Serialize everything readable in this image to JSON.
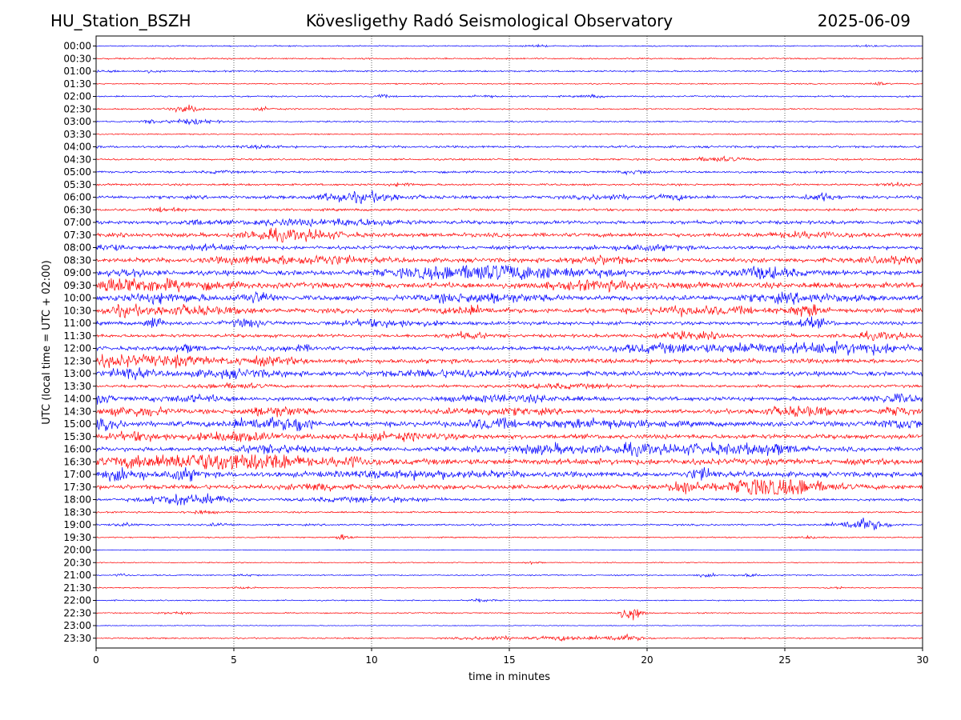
{
  "header": {
    "station": "HU_Station_BSZH",
    "observatory": "Kövesligethy Radó Seismological Observatory",
    "date": "2025-06-09"
  },
  "chart_data": {
    "type": "line",
    "title": "Kövesligethy Radó Seismological Observatory",
    "xlabel": "time in minutes",
    "ylabel": "UTC (local time = UTC + 02:00)",
    "xlim": [
      0,
      30
    ],
    "x_ticks": [
      "0",
      "5",
      "10",
      "15",
      "20",
      "25",
      "30"
    ],
    "x_gridlines": [
      5,
      10,
      15,
      20,
      25
    ],
    "grid": "vertical dotted",
    "series_colors": [
      "#0000ff",
      "#ff0000"
    ],
    "rows": [
      {
        "label": "00:00",
        "noise": 0.6,
        "events": [
          [
            16.0,
            0.8,
            0.3
          ],
          [
            28.0,
            0.5,
            0.3
          ]
        ]
      },
      {
        "label": "00:30",
        "noise": 0.7,
        "events": []
      },
      {
        "label": "01:00",
        "noise": 0.8,
        "events": [
          [
            0.3,
            0.8,
            0.4
          ],
          [
            1.9,
            1.0,
            0.3
          ]
        ]
      },
      {
        "label": "01:30",
        "noise": 0.6,
        "events": [
          [
            28.3,
            2.2,
            0.2
          ]
        ]
      },
      {
        "label": "02:00",
        "noise": 0.8,
        "events": [
          [
            10.3,
            1.4,
            0.2
          ],
          [
            14.1,
            1.0,
            0.3
          ],
          [
            18.0,
            1.2,
            0.3
          ]
        ]
      },
      {
        "label": "02:30",
        "noise": 0.7,
        "events": [
          [
            3.4,
            2.8,
            0.3
          ],
          [
            2.9,
            1.2,
            0.3
          ],
          [
            6.1,
            1.2,
            0.3
          ]
        ]
      },
      {
        "label": "03:00",
        "noise": 0.7,
        "events": [
          [
            3.5,
            2.5,
            0.6
          ],
          [
            2.0,
            1.3,
            0.3
          ],
          [
            29.2,
            1.0,
            0.2
          ]
        ]
      },
      {
        "label": "03:30",
        "noise": 0.6,
        "events": []
      },
      {
        "label": "04:00",
        "noise": 1.1,
        "events": [
          [
            6.0,
            1.0,
            0.5
          ]
        ]
      },
      {
        "label": "04:30",
        "noise": 0.9,
        "events": [
          [
            22.5,
            2.0,
            0.8
          ]
        ]
      },
      {
        "label": "05:00",
        "noise": 1.1,
        "events": [
          [
            19.6,
            1.6,
            0.4
          ],
          [
            4.5,
            1.0,
            0.3
          ]
        ]
      },
      {
        "label": "05:30",
        "noise": 1.0,
        "events": [
          [
            11.2,
            1.5,
            0.3
          ],
          [
            29.0,
            1.5,
            0.4
          ]
        ]
      },
      {
        "label": "06:00",
        "noise": 1.6,
        "events": [
          [
            10.0,
            3.5,
            0.9
          ],
          [
            8.8,
            2.5,
            0.6
          ],
          [
            26.3,
            3.0,
            0.4
          ],
          [
            18.5,
            2.0,
            0.6
          ],
          [
            21.0,
            2.0,
            0.4
          ]
        ]
      },
      {
        "label": "06:30",
        "noise": 1.2,
        "events": [
          [
            2.6,
            2.5,
            0.3
          ]
        ]
      },
      {
        "label": "07:00",
        "noise": 1.8,
        "events": [
          [
            9.2,
            2.8,
            1.2
          ],
          [
            6.5,
            2.0,
            0.8
          ],
          [
            3.6,
            1.8,
            0.5
          ]
        ]
      },
      {
        "label": "07:30",
        "noise": 2.0,
        "events": [
          [
            6.2,
            4.0,
            0.6
          ],
          [
            7.7,
            3.8,
            0.9
          ],
          [
            26.0,
            2.0,
            1.0
          ]
        ]
      },
      {
        "label": "08:00",
        "noise": 1.8,
        "events": [
          [
            0.3,
            3.0,
            0.5
          ],
          [
            4.0,
            2.0,
            1.0
          ],
          [
            20.0,
            2.0,
            1.0
          ]
        ]
      },
      {
        "label": "08:30",
        "noise": 2.2,
        "events": [
          [
            8.2,
            3.8,
            1.1
          ],
          [
            18.3,
            3.2,
            0.8
          ],
          [
            5.5,
            2.4,
            1.0
          ],
          [
            29.0,
            2.6,
            0.8
          ]
        ]
      },
      {
        "label": "09:00",
        "noise": 2.4,
        "events": [
          [
            12.5,
            4.0,
            1.5
          ],
          [
            14.5,
            5.0,
            1.2
          ],
          [
            24.2,
            5.0,
            0.8
          ],
          [
            1.2,
            3.0,
            0.5
          ],
          [
            17.0,
            3.0,
            1.5
          ]
        ]
      },
      {
        "label": "09:30",
        "noise": 2.8,
        "events": [
          [
            0.7,
            4.5,
            0.9
          ],
          [
            2.5,
            3.5,
            1.6
          ],
          [
            18.5,
            3.0,
            1.5
          ]
        ]
      },
      {
        "label": "10:00",
        "noise": 2.4,
        "events": [
          [
            5.8,
            5.0,
            0.4
          ],
          [
            2.5,
            3.5,
            1.0
          ],
          [
            14.0,
            3.5,
            1.5
          ],
          [
            25.5,
            3.0,
            1.5
          ]
        ]
      },
      {
        "label": "10:30",
        "noise": 2.3,
        "events": [
          [
            25.8,
            5.5,
            0.4
          ],
          [
            3.0,
            3.5,
            1.5
          ],
          [
            13.5,
            3.5,
            0.6
          ],
          [
            0.9,
            3.0,
            0.4
          ],
          [
            22.0,
            3.0,
            1.5
          ]
        ]
      },
      {
        "label": "11:00",
        "noise": 1.8,
        "events": [
          [
            2.1,
            6.5,
            0.2
          ],
          [
            25.9,
            4.0,
            0.5
          ],
          [
            5.5,
            3.0,
            0.5
          ],
          [
            10.5,
            2.5,
            1.2
          ]
        ]
      },
      {
        "label": "11:30",
        "noise": 1.6,
        "events": [
          [
            13.5,
            2.8,
            0.5
          ],
          [
            21.5,
            2.8,
            1.0
          ],
          [
            28.5,
            2.8,
            0.8
          ]
        ]
      },
      {
        "label": "12:00",
        "noise": 2.0,
        "events": [
          [
            27.5,
            5.0,
            1.5
          ],
          [
            24.0,
            3.5,
            1.2
          ],
          [
            20.5,
            3.5,
            1.5
          ],
          [
            3.3,
            3.0,
            0.4
          ],
          [
            7.2,
            2.5,
            0.5
          ]
        ]
      },
      {
        "label": "12:30",
        "noise": 2.2,
        "events": [
          [
            0.5,
            4.5,
            1.2
          ],
          [
            3.0,
            3.5,
            0.8
          ],
          [
            6.0,
            3.0,
            1.0
          ]
        ]
      },
      {
        "label": "13:00",
        "noise": 2.2,
        "events": [
          [
            1.2,
            5.0,
            0.5
          ],
          [
            5.0,
            3.0,
            1.2
          ],
          [
            13.0,
            2.5,
            2.0
          ]
        ]
      },
      {
        "label": "13:30",
        "noise": 1.4,
        "events": [
          [
            5.0,
            2.0,
            0.8
          ],
          [
            17.0,
            1.6,
            1.5
          ]
        ]
      },
      {
        "label": "14:00",
        "noise": 2.0,
        "events": [
          [
            0.2,
            3.5,
            0.3
          ],
          [
            29.0,
            3.8,
            0.6
          ],
          [
            15.0,
            2.5,
            1.5
          ],
          [
            3.5,
            2.5,
            1.0
          ]
        ]
      },
      {
        "label": "14:30",
        "noise": 2.0,
        "events": [
          [
            1.5,
            4.0,
            0.8
          ],
          [
            6.5,
            4.0,
            0.8
          ],
          [
            25.5,
            4.0,
            1.0
          ],
          [
            29.0,
            4.0,
            0.4
          ],
          [
            14.5,
            2.5,
            1.5
          ]
        ]
      },
      {
        "label": "15:00",
        "noise": 2.6,
        "events": [
          [
            7.4,
            6.5,
            0.3
          ],
          [
            6.0,
            5.0,
            0.8
          ],
          [
            14.3,
            4.0,
            0.6
          ],
          [
            0.3,
            3.5,
            0.5
          ],
          [
            29.3,
            4.0,
            0.6
          ],
          [
            18.0,
            3.0,
            1.5
          ]
        ]
      },
      {
        "label": "15:30",
        "noise": 2.2,
        "events": [
          [
            5.0,
            3.8,
            1.0
          ],
          [
            1.5,
            3.0,
            0.8
          ],
          [
            11.0,
            2.5,
            1.5
          ]
        ]
      },
      {
        "label": "16:00",
        "noise": 2.2,
        "events": [
          [
            19.5,
            4.2,
            0.6
          ],
          [
            24.5,
            4.2,
            0.8
          ],
          [
            22.0,
            4.0,
            1.2
          ],
          [
            16.5,
            3.5,
            1.5
          ],
          [
            6.5,
            3.0,
            1.0
          ]
        ]
      },
      {
        "label": "16:30",
        "noise": 3.0,
        "events": [
          [
            6.3,
            7.5,
            0.8
          ],
          [
            4.5,
            6.5,
            0.7
          ],
          [
            3.5,
            4.5,
            0.8
          ],
          [
            9.2,
            4.0,
            0.5
          ],
          [
            1.5,
            4.0,
            1.0
          ]
        ]
      },
      {
        "label": "17:00",
        "noise": 2.6,
        "events": [
          [
            1.0,
            5.0,
            0.6
          ],
          [
            22.0,
            6.0,
            0.3
          ],
          [
            3.2,
            5.0,
            0.4
          ],
          [
            12.0,
            2.5,
            2.0
          ]
        ]
      },
      {
        "label": "17:30",
        "noise": 2.3,
        "events": [
          [
            21.4,
            5.5,
            0.4
          ],
          [
            23.8,
            6.0,
            0.3
          ],
          [
            25.2,
            5.0,
            0.8
          ],
          [
            24.5,
            4.0,
            1.5
          ],
          [
            8.0,
            3.0,
            0.6
          ]
        ]
      },
      {
        "label": "18:00",
        "noise": 1.3,
        "events": [
          [
            3.0,
            5.0,
            0.8
          ],
          [
            4.5,
            2.5,
            0.5
          ],
          [
            10.0,
            2.0,
            1.5
          ]
        ]
      },
      {
        "label": "18:30",
        "noise": 0.8,
        "events": [
          [
            3.8,
            1.5,
            0.4
          ]
        ]
      },
      {
        "label": "19:00",
        "noise": 0.9,
        "events": [
          [
            27.8,
            6.0,
            0.6
          ],
          [
            1.0,
            1.5,
            0.3
          ],
          [
            4.5,
            1.3,
            0.3
          ]
        ]
      },
      {
        "label": "19:30",
        "noise": 0.6,
        "events": [
          [
            9.0,
            2.8,
            0.2
          ],
          [
            25.9,
            1.2,
            0.3
          ]
        ]
      },
      {
        "label": "20:00",
        "noise": 0.4,
        "events": []
      },
      {
        "label": "20:30",
        "noise": 0.5,
        "events": [
          [
            15.8,
            1.2,
            0.2
          ]
        ]
      },
      {
        "label": "21:00",
        "noise": 0.6,
        "events": [
          [
            1.0,
            1.4,
            0.2
          ],
          [
            23.7,
            1.6,
            0.3
          ],
          [
            22.2,
            1.2,
            0.3
          ],
          [
            5.5,
            1.0,
            0.3
          ]
        ]
      },
      {
        "label": "21:30",
        "noise": 0.5,
        "events": [
          [
            26.9,
            1.2,
            0.2
          ],
          [
            5.3,
            1.0,
            0.3
          ]
        ]
      },
      {
        "label": "22:00",
        "noise": 0.6,
        "events": [
          [
            14.0,
            1.4,
            0.3
          ]
        ]
      },
      {
        "label": "22:30",
        "noise": 0.6,
        "events": [
          [
            19.4,
            7.0,
            0.3
          ],
          [
            3.0,
            1.0,
            0.4
          ]
        ]
      },
      {
        "label": "23:00",
        "noise": 0.4,
        "events": []
      },
      {
        "label": "23:30",
        "noise": 0.7,
        "events": [
          [
            19.0,
            3.0,
            0.6
          ],
          [
            17.0,
            2.0,
            0.6
          ],
          [
            14.5,
            1.6,
            0.8
          ]
        ]
      }
    ]
  }
}
